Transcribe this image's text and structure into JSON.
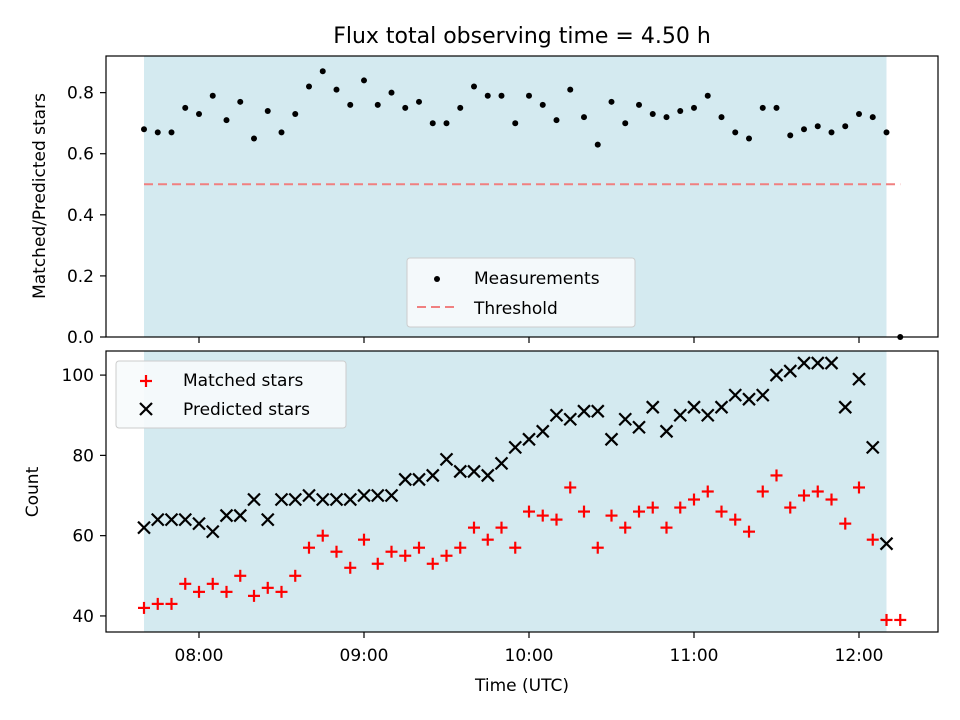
{
  "figure": {
    "title": "Flux total observing time = 4.50 h",
    "xlabel": "Time (UTC)",
    "x_ticks": [
      "08:00",
      "09:00",
      "10:00",
      "11:00",
      "12:00"
    ],
    "colors": {
      "observing_span": "#d4eaf0",
      "threshold": "#f08080",
      "matched": "#ff0000",
      "predicted": "#000000",
      "measurement": "#000000"
    }
  },
  "chart_data": [
    {
      "type": "scatter",
      "ylabel": "Matched/Predicted stars",
      "ylim": [
        0,
        0.92
      ],
      "yticks": [
        "0.0",
        "0.2",
        "0.4",
        "0.6",
        "0.8"
      ],
      "observing_span": {
        "start": "07:40",
        "end": "12:10"
      },
      "threshold": {
        "value": 0.5,
        "from": "07:40",
        "to": "12:15"
      },
      "legend": {
        "placement": "lower-center",
        "entries": [
          "Measurements",
          "Threshold"
        ]
      },
      "series": [
        {
          "name": "Measurements",
          "x": [
            "07:40",
            "07:45",
            "07:50",
            "07:55",
            "08:00",
            "08:05",
            "08:10",
            "08:15",
            "08:20",
            "08:25",
            "08:30",
            "08:35",
            "08:40",
            "08:45",
            "08:50",
            "08:55",
            "09:00",
            "09:05",
            "09:10",
            "09:15",
            "09:20",
            "09:25",
            "09:30",
            "09:35",
            "09:40",
            "09:45",
            "09:50",
            "09:55",
            "10:00",
            "10:05",
            "10:10",
            "10:15",
            "10:20",
            "10:25",
            "10:30",
            "10:35",
            "10:40",
            "10:45",
            "10:50",
            "10:55",
            "11:00",
            "11:05",
            "11:10",
            "11:15",
            "11:20",
            "11:25",
            "11:30",
            "11:35",
            "11:40",
            "11:45",
            "11:50",
            "11:55",
            "12:00",
            "12:05",
            "12:10",
            "12:15"
          ],
          "values": [
            0.68,
            0.67,
            0.67,
            0.75,
            0.73,
            0.79,
            0.71,
            0.77,
            0.65,
            0.74,
            0.67,
            0.73,
            0.82,
            0.87,
            0.81,
            0.76,
            0.84,
            0.76,
            0.8,
            0.75,
            0.77,
            0.7,
            0.7,
            0.75,
            0.82,
            0.79,
            0.79,
            0.7,
            0.79,
            0.76,
            0.71,
            0.81,
            0.72,
            0.63,
            0.77,
            0.7,
            0.76,
            0.73,
            0.72,
            0.74,
            0.75,
            0.79,
            0.72,
            0.67,
            0.65,
            0.75,
            0.75,
            0.66,
            0.68,
            0.69,
            0.67,
            0.69,
            0.73,
            0.72,
            0.67,
            0.0
          ]
        }
      ]
    },
    {
      "type": "scatter",
      "ylabel": "Count",
      "ylim": [
        36,
        106
      ],
      "yticks": [
        "40",
        "60",
        "80",
        "100"
      ],
      "observing_span": {
        "start": "07:40",
        "end": "12:10"
      },
      "legend": {
        "placement": "upper-left",
        "entries": [
          "Matched stars",
          "Predicted stars"
        ]
      },
      "series": [
        {
          "name": "Matched stars",
          "marker": "plus",
          "x": [
            "07:40",
            "07:45",
            "07:50",
            "07:55",
            "08:00",
            "08:05",
            "08:10",
            "08:15",
            "08:20",
            "08:25",
            "08:30",
            "08:35",
            "08:40",
            "08:45",
            "08:50",
            "08:55",
            "09:00",
            "09:05",
            "09:10",
            "09:15",
            "09:20",
            "09:25",
            "09:30",
            "09:35",
            "09:40",
            "09:45",
            "09:50",
            "09:55",
            "10:00",
            "10:05",
            "10:10",
            "10:15",
            "10:20",
            "10:25",
            "10:30",
            "10:35",
            "10:40",
            "10:45",
            "10:50",
            "10:55",
            "11:00",
            "11:05",
            "11:10",
            "11:15",
            "11:20",
            "11:25",
            "11:30",
            "11:35",
            "11:40",
            "11:45",
            "11:50",
            "11:55",
            "12:00",
            "12:05",
            "12:10",
            "12:15"
          ],
          "values": [
            42,
            43,
            43,
            48,
            46,
            48,
            46,
            50,
            45,
            47,
            46,
            50,
            57,
            60,
            56,
            52,
            59,
            53,
            56,
            55,
            57,
            53,
            55,
            57,
            62,
            59,
            62,
            57,
            66,
            65,
            64,
            72,
            66,
            57,
            65,
            62,
            66,
            67,
            62,
            67,
            69,
            71,
            66,
            64,
            61,
            71,
            75,
            67,
            70,
            71,
            69,
            63,
            72,
            59,
            39,
            39
          ]
        },
        {
          "name": "Predicted stars",
          "marker": "x",
          "x": [
            "07:40",
            "07:45",
            "07:50",
            "07:55",
            "08:00",
            "08:05",
            "08:10",
            "08:15",
            "08:20",
            "08:25",
            "08:30",
            "08:35",
            "08:40",
            "08:45",
            "08:50",
            "08:55",
            "09:00",
            "09:05",
            "09:10",
            "09:15",
            "09:20",
            "09:25",
            "09:30",
            "09:35",
            "09:40",
            "09:45",
            "09:50",
            "09:55",
            "10:00",
            "10:05",
            "10:10",
            "10:15",
            "10:20",
            "10:25",
            "10:30",
            "10:35",
            "10:40",
            "10:45",
            "10:50",
            "10:55",
            "11:00",
            "11:05",
            "11:10",
            "11:15",
            "11:20",
            "11:25",
            "11:30",
            "11:35",
            "11:40",
            "11:45",
            "11:50",
            "11:55",
            "12:00",
            "12:05",
            "12:10"
          ],
          "values": [
            62,
            64,
            64,
            64,
            63,
            61,
            65,
            65,
            69,
            64,
            69,
            69,
            70,
            69,
            69,
            69,
            70,
            70,
            70,
            74,
            74,
            75,
            79,
            76,
            76,
            75,
            78,
            82,
            84,
            86,
            90,
            89,
            91,
            91,
            84,
            89,
            87,
            92,
            86,
            90,
            92,
            90,
            92,
            95,
            94,
            95,
            100,
            101,
            103,
            103,
            103,
            92,
            99,
            82,
            58
          ]
        }
      ]
    }
  ]
}
